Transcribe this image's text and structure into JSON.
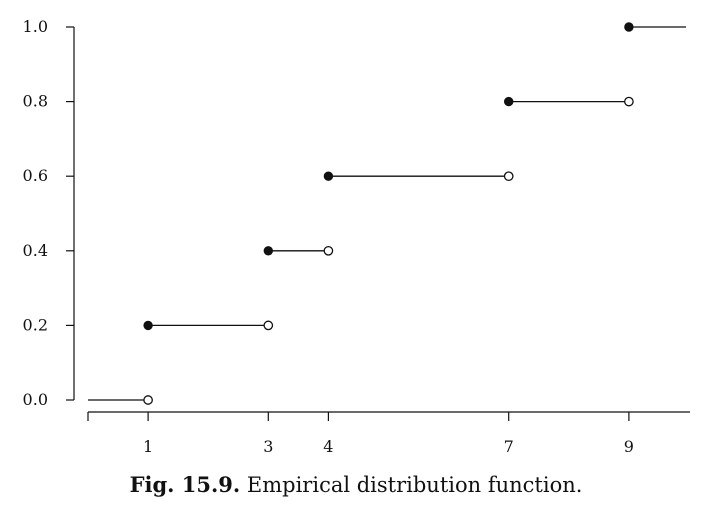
{
  "caption": {
    "label": "Fig. 15.9.",
    "text": "Empirical distribution function."
  },
  "chart_data": {
    "type": "line",
    "title": "",
    "xlabel": "",
    "ylabel": "",
    "xlim": [
      0,
      10
    ],
    "ylim": [
      0,
      1
    ],
    "x_ticks": [
      1,
      3,
      4,
      7,
      9
    ],
    "y_ticks": [
      "0.0",
      "0.2",
      "0.4",
      "0.6",
      "0.8",
      "1.0"
    ],
    "grid": false,
    "steps": [
      {
        "x_start": 0,
        "x_end": 1,
        "y": 0.0,
        "closed_start": false,
        "open_end": true
      },
      {
        "x_start": 1,
        "x_end": 3,
        "y": 0.2,
        "closed_start": true,
        "open_end": true
      },
      {
        "x_start": 3,
        "x_end": 4,
        "y": 0.4,
        "closed_start": true,
        "open_end": true
      },
      {
        "x_start": 4,
        "x_end": 7,
        "y": 0.6,
        "closed_start": true,
        "open_end": true
      },
      {
        "x_start": 7,
        "x_end": 9,
        "y": 0.8,
        "closed_start": true,
        "open_end": true
      },
      {
        "x_start": 9,
        "x_end": 10,
        "y": 1.0,
        "closed_start": true,
        "open_end": false
      }
    ]
  }
}
